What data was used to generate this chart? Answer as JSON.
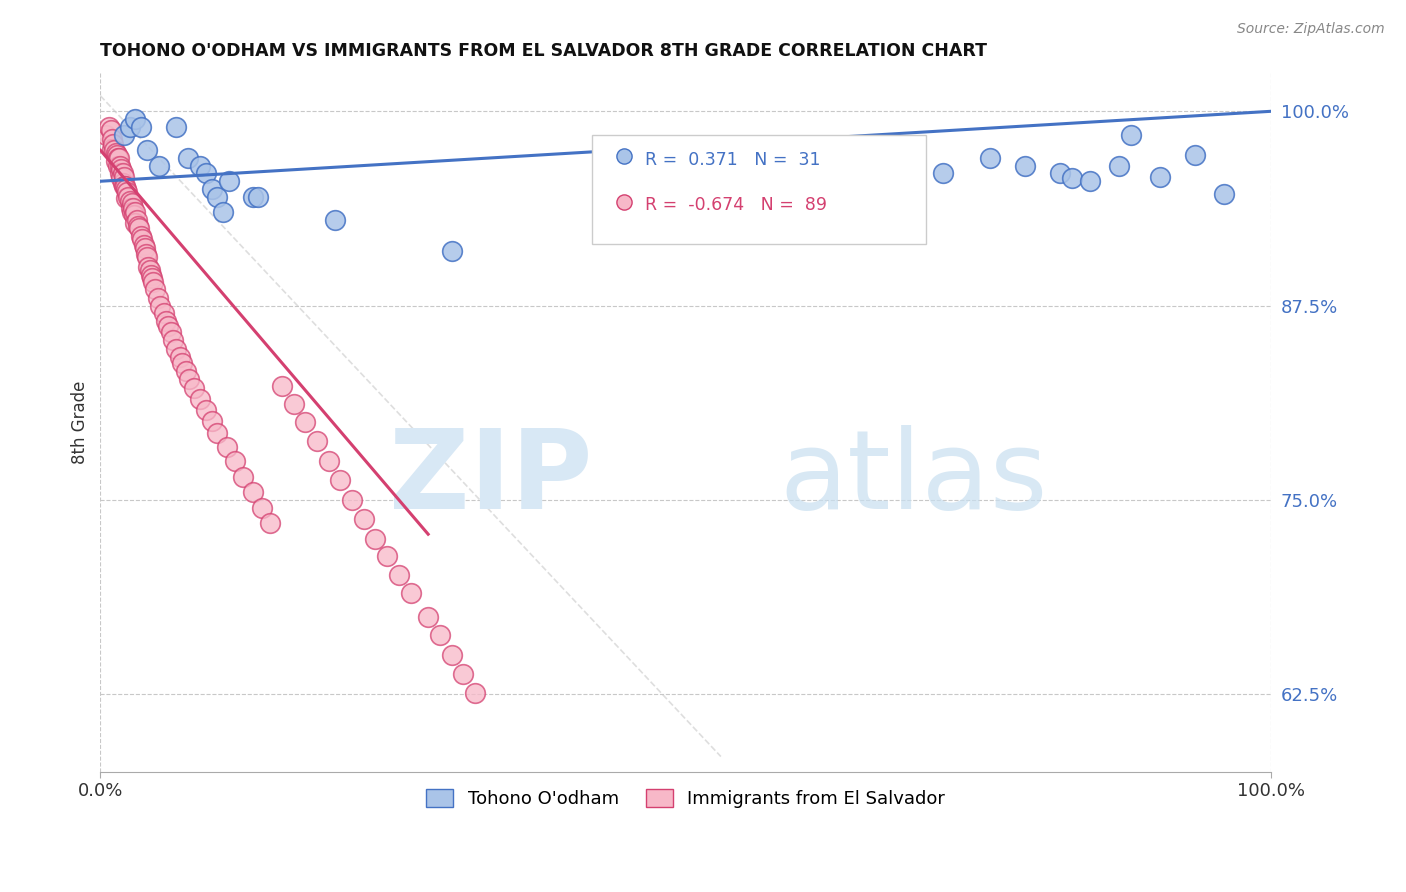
{
  "title": "TOHONO O'ODHAM VS IMMIGRANTS FROM EL SALVADOR 8TH GRADE CORRELATION CHART",
  "source": "Source: ZipAtlas.com",
  "ylabel": "8th Grade",
  "r1": 0.371,
  "n1": 31,
  "r2": -0.674,
  "n2": 89,
  "xlim": [
    0.0,
    1.0
  ],
  "ylim": [
    0.575,
    1.025
  ],
  "yticks": [
    0.625,
    0.75,
    0.875,
    1.0
  ],
  "ytick_labels": [
    "62.5%",
    "75.0%",
    "87.5%",
    "100.0%"
  ],
  "xtick_labels": [
    "0.0%",
    "100.0%"
  ],
  "xticks": [
    0.0,
    1.0
  ],
  "color_blue": "#aac4e8",
  "color_pink": "#f7b8c8",
  "line_blue": "#4472c4",
  "line_pink": "#d44070",
  "line_dashed_color": "#c8c8c8",
  "background": "#ffffff",
  "legend_label1": "Tohono O'odham",
  "legend_label2": "Immigrants from El Salvador",
  "blue_line_x0": 0.0,
  "blue_line_y0": 0.955,
  "blue_line_x1": 1.0,
  "blue_line_y1": 1.0,
  "pink_line_x0": 0.0,
  "pink_line_y0": 0.975,
  "pink_line_x1": 0.28,
  "pink_line_y1": 0.728,
  "dashed_line_x0": 0.0,
  "dashed_line_y0": 1.01,
  "dashed_line_x1": 0.53,
  "dashed_line_y1": 0.585,
  "blue_x": [
    0.02,
    0.025,
    0.03,
    0.035,
    0.04,
    0.05,
    0.065,
    0.075,
    0.085,
    0.09,
    0.095,
    0.1,
    0.105,
    0.11,
    0.13,
    0.135,
    0.2,
    0.3,
    0.62,
    0.68,
    0.72,
    0.76,
    0.79,
    0.82,
    0.83,
    0.845,
    0.87,
    0.88,
    0.905,
    0.935,
    0.96
  ],
  "blue_y": [
    0.985,
    0.99,
    0.995,
    0.99,
    0.975,
    0.965,
    0.99,
    0.97,
    0.965,
    0.96,
    0.95,
    0.945,
    0.935,
    0.955,
    0.945,
    0.945,
    0.93,
    0.91,
    0.935,
    0.965,
    0.96,
    0.97,
    0.965,
    0.96,
    0.957,
    0.955,
    0.965,
    0.985,
    0.958,
    0.972,
    0.947
  ],
  "pink_x": [
    0.005,
    0.007,
    0.009,
    0.01,
    0.01,
    0.011,
    0.012,
    0.013,
    0.013,
    0.014,
    0.015,
    0.015,
    0.016,
    0.017,
    0.017,
    0.018,
    0.018,
    0.019,
    0.019,
    0.02,
    0.02,
    0.021,
    0.022,
    0.022,
    0.023,
    0.024,
    0.025,
    0.026,
    0.027,
    0.027,
    0.028,
    0.029,
    0.03,
    0.03,
    0.031,
    0.032,
    0.033,
    0.035,
    0.036,
    0.037,
    0.038,
    0.039,
    0.04,
    0.041,
    0.042,
    0.043,
    0.044,
    0.045,
    0.047,
    0.049,
    0.051,
    0.054,
    0.056,
    0.058,
    0.06,
    0.062,
    0.065,
    0.068,
    0.07,
    0.073,
    0.076,
    0.08,
    0.085,
    0.09,
    0.095,
    0.1,
    0.108,
    0.115,
    0.122,
    0.13,
    0.138,
    0.145,
    0.155,
    0.165,
    0.175,
    0.185,
    0.195,
    0.205,
    0.215,
    0.225,
    0.235,
    0.245,
    0.255,
    0.265,
    0.28,
    0.29,
    0.3,
    0.31,
    0.32
  ],
  "pink_y": [
    0.985,
    0.99,
    0.988,
    0.982,
    0.976,
    0.979,
    0.975,
    0.973,
    0.968,
    0.972,
    0.97,
    0.965,
    0.97,
    0.965,
    0.96,
    0.963,
    0.957,
    0.96,
    0.954,
    0.958,
    0.952,
    0.952,
    0.95,
    0.944,
    0.948,
    0.945,
    0.942,
    0.938,
    0.941,
    0.935,
    0.938,
    0.933,
    0.935,
    0.928,
    0.93,
    0.926,
    0.925,
    0.92,
    0.918,
    0.914,
    0.912,
    0.908,
    0.906,
    0.9,
    0.898,
    0.895,
    0.893,
    0.89,
    0.886,
    0.88,
    0.875,
    0.87,
    0.865,
    0.862,
    0.858,
    0.853,
    0.847,
    0.842,
    0.838,
    0.833,
    0.828,
    0.822,
    0.815,
    0.808,
    0.801,
    0.793,
    0.784,
    0.775,
    0.765,
    0.755,
    0.745,
    0.735,
    0.823,
    0.812,
    0.8,
    0.788,
    0.775,
    0.763,
    0.75,
    0.738,
    0.725,
    0.714,
    0.702,
    0.69,
    0.675,
    0.663,
    0.65,
    0.638,
    0.626
  ]
}
